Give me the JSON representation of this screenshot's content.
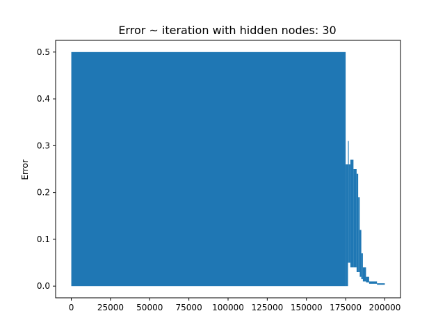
{
  "chart_data": {
    "type": "line",
    "title": "Error ~ iteration with hidden nodes: 30",
    "xlabel": "",
    "ylabel": "Error",
    "xlim": [
      -10000,
      210000
    ],
    "ylim": [
      -0.025,
      0.525
    ],
    "xticks": [
      0,
      25000,
      50000,
      75000,
      100000,
      125000,
      150000,
      175000,
      200000
    ],
    "xtick_labels": [
      "0",
      "25000",
      "50000",
      "75000",
      "100000",
      "125000",
      "150000",
      "175000",
      "200000"
    ],
    "yticks": [
      0.0,
      0.1,
      0.2,
      0.3,
      0.4,
      0.5
    ],
    "ytick_labels": [
      "0.0",
      "0.1",
      "0.2",
      "0.3",
      "0.4",
      "0.5"
    ],
    "grid": false,
    "legend": false,
    "series": [
      {
        "color": "#1f77b4",
        "description_bands": [
          {
            "x_start": 0,
            "x_end": 175000,
            "y_min": 0.0,
            "y_max": 0.5
          },
          {
            "x_start": 175000,
            "x_end": 176500,
            "y_min": 0.0,
            "y_max": 0.26
          },
          {
            "x_start": 176500,
            "x_end": 177000,
            "y_min": 0.05,
            "y_max": 0.31
          },
          {
            "x_start": 177000,
            "x_end": 178000,
            "y_min": 0.05,
            "y_max": 0.26
          },
          {
            "x_start": 178000,
            "x_end": 180000,
            "y_min": 0.04,
            "y_max": 0.27
          },
          {
            "x_start": 180000,
            "x_end": 182000,
            "y_min": 0.04,
            "y_max": 0.25
          },
          {
            "x_start": 182000,
            "x_end": 183000,
            "y_min": 0.03,
            "y_max": 0.24
          },
          {
            "x_start": 183000,
            "x_end": 184000,
            "y_min": 0.03,
            "y_max": 0.19
          },
          {
            "x_start": 184000,
            "x_end": 185000,
            "y_min": 0.02,
            "y_max": 0.12
          },
          {
            "x_start": 185000,
            "x_end": 186000,
            "y_min": 0.015,
            "y_max": 0.07
          },
          {
            "x_start": 186000,
            "x_end": 188000,
            "y_min": 0.01,
            "y_max": 0.04
          },
          {
            "x_start": 188000,
            "x_end": 190000,
            "y_min": 0.008,
            "y_max": 0.02
          },
          {
            "x_start": 190000,
            "x_end": 195000,
            "y_min": 0.005,
            "y_max": 0.01
          },
          {
            "x_start": 195000,
            "x_end": 200000,
            "y_min": 0.003,
            "y_max": 0.006
          }
        ]
      }
    ]
  }
}
